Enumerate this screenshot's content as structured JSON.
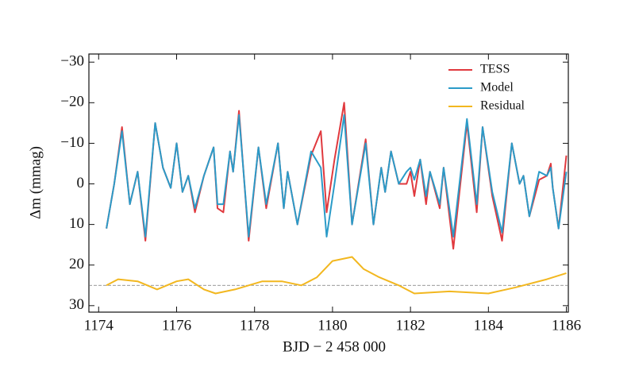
{
  "chart_data": {
    "type": "line",
    "xlabel": "BJD − 2 458 000",
    "ylabel": "Δm (mmag)",
    "xlim": [
      1173.75,
      1186.05
    ],
    "ylim": [
      31.6,
      -32
    ],
    "xticks": [
      1174,
      1176,
      1178,
      1180,
      1182,
      1184,
      1186
    ],
    "yticks": [
      {
        "value": -30,
        "label": "−30"
      },
      {
        "value": -20,
        "label": "−20"
      },
      {
        "value": -10,
        "label": "−10"
      },
      0,
      10,
      20,
      30
    ],
    "hline": 25,
    "legend": "upper right",
    "series": [
      {
        "name": "TESS",
        "color": "#e0393e",
        "x": [
          1174.2,
          1174.4,
          1174.6,
          1174.8,
          1175.0,
          1175.2,
          1175.45,
          1175.65,
          1175.85,
          1176.0,
          1176.15,
          1176.3,
          1176.47,
          1176.7,
          1176.95,
          1177.05,
          1177.2,
          1177.37,
          1177.45,
          1177.6,
          1177.85,
          1178.1,
          1178.3,
          1178.6,
          1178.75,
          1178.85,
          1179.1,
          1179.45,
          1179.7,
          1179.85,
          1180.05,
          1180.3,
          1180.5,
          1180.85,
          1181.05,
          1181.25,
          1181.35,
          1181.5,
          1181.7,
          1181.9,
          1182.0,
          1182.1,
          1182.25,
          1182.4,
          1182.5,
          1182.75,
          1182.85,
          1183.1,
          1183.45,
          1183.7,
          1183.85,
          1184.1,
          1184.35,
          1184.6,
          1184.8,
          1184.9,
          1185.05,
          1185.3,
          1185.5,
          1185.6,
          1185.65,
          1185.8,
          1186.0
        ],
        "values": [
          11,
          0,
          -14,
          5,
          -3,
          14,
          -15,
          -4,
          1,
          -10,
          2,
          -2,
          7,
          -2,
          -9,
          6,
          7,
          -8,
          -3,
          -18,
          14,
          -9,
          6,
          -10,
          6,
          -3,
          10,
          -7,
          -13,
          7,
          -6,
          -20,
          10,
          -11,
          10,
          -4,
          2,
          -8,
          0,
          0,
          -3,
          3,
          -6,
          5,
          -3,
          6,
          -4,
          16,
          -15,
          7,
          -14,
          3,
          14,
          -10,
          0,
          -2,
          8,
          -1,
          -2,
          -5,
          1,
          11,
          -7
        ]
      },
      {
        "name": "Model",
        "color": "#2b9bc8",
        "x": [
          1174.2,
          1174.4,
          1174.6,
          1174.8,
          1175.0,
          1175.2,
          1175.45,
          1175.65,
          1175.85,
          1176.0,
          1176.15,
          1176.3,
          1176.47,
          1176.7,
          1176.95,
          1177.05,
          1177.2,
          1177.37,
          1177.45,
          1177.6,
          1177.85,
          1178.1,
          1178.3,
          1178.6,
          1178.75,
          1178.85,
          1179.1,
          1179.45,
          1179.7,
          1179.85,
          1180.05,
          1180.3,
          1180.5,
          1180.85,
          1181.05,
          1181.25,
          1181.35,
          1181.5,
          1181.7,
          1181.9,
          1182.0,
          1182.1,
          1182.25,
          1182.4,
          1182.5,
          1182.75,
          1182.85,
          1183.1,
          1183.45,
          1183.7,
          1183.85,
          1184.1,
          1184.35,
          1184.6,
          1184.8,
          1184.9,
          1185.05,
          1185.3,
          1185.5,
          1185.6,
          1185.65,
          1185.8,
          1186.0
        ],
        "values": [
          11,
          0,
          -13,
          5,
          -3,
          13,
          -15,
          -4,
          1,
          -10,
          2,
          -2,
          6,
          -2,
          -9,
          5,
          5,
          -8,
          -3,
          -17,
          13,
          -9,
          5,
          -10,
          6,
          -3,
          10,
          -8,
          -4,
          13,
          0,
          -17,
          10,
          -10,
          10,
          -4,
          2,
          -8,
          0,
          -3,
          -4,
          -1,
          -6,
          3,
          -3,
          5,
          -4,
          13,
          -16,
          5,
          -14,
          2,
          12,
          -10,
          0,
          -2,
          8,
          -3,
          -2,
          -4,
          1,
          11,
          -3
        ]
      },
      {
        "name": "Residual",
        "color": "#f2b71f",
        "x": [
          1174.2,
          1174.5,
          1175.0,
          1175.5,
          1176.0,
          1176.3,
          1176.7,
          1177.0,
          1177.5,
          1178.2,
          1178.7,
          1179.2,
          1179.6,
          1180.0,
          1180.5,
          1180.8,
          1181.2,
          1181.7,
          1182.1,
          1183.0,
          1184.0,
          1184.7,
          1185.5,
          1186.0
        ],
        "values": [
          25,
          23.5,
          24,
          26,
          24,
          23.5,
          26,
          27,
          26,
          24,
          24,
          25,
          23,
          19,
          18,
          21,
          23,
          25,
          27,
          26.5,
          27,
          25.5,
          23.5,
          22
        ]
      }
    ]
  }
}
